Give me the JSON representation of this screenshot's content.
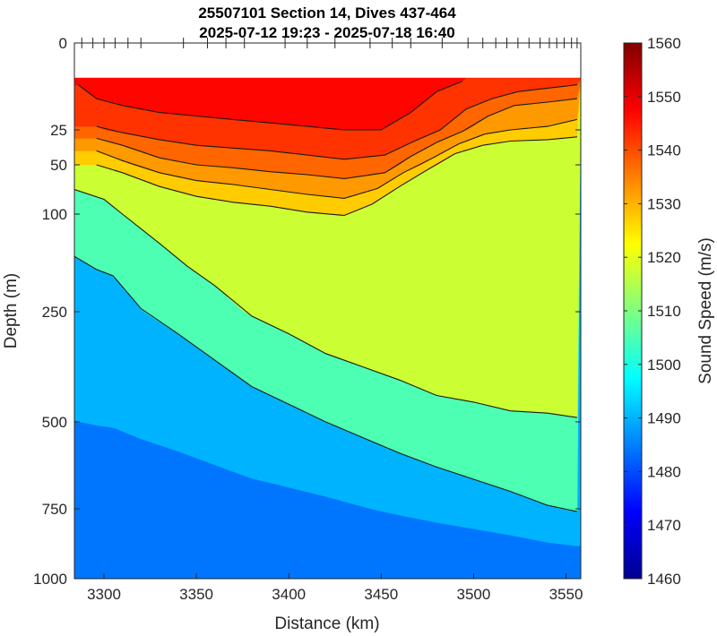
{
  "chart_data": {
    "type": "heatmap",
    "title": "25507101 Section 14, Dives 437-464",
    "subtitle": "2025-07-12 19:23 - 2025-07-18 16:40",
    "xlabel": "Distance (km)",
    "ylabel": "Depth (m)",
    "xlim": [
      3284,
      3558
    ],
    "ylim": [
      0,
      1000
    ],
    "y_scale": "nonlinear (compressed deep axis)",
    "x_ticks": [
      3300,
      3350,
      3400,
      3450,
      3500,
      3550
    ],
    "x_tick_labels": [
      "3300",
      "3350",
      "3400",
      "3450",
      "3500",
      "3550"
    ],
    "y_ticks": [
      0,
      25,
      50,
      100,
      250,
      500,
      750,
      1000
    ],
    "y_tick_labels": [
      "0",
      "25",
      "50",
      "100",
      "250",
      "500",
      "750",
      "1000"
    ],
    "colorbar": {
      "label": "Sound Speed (m/s)",
      "range": [
        1460,
        1560
      ],
      "ticks": [
        1460,
        1470,
        1480,
        1490,
        1500,
        1510,
        1520,
        1530,
        1540,
        1550,
        1560
      ],
      "tick_labels": [
        "1460",
        "1470",
        "1480",
        "1490",
        "1500",
        "1510",
        "1520",
        "1530",
        "1540",
        "1550",
        "1560"
      ],
      "colormap": "jet"
    },
    "data_top_depth": 10,
    "dive_locations_km": [
      3288,
      3294,
      3300,
      3306,
      3313,
      3320,
      3343,
      3356,
      3366,
      3376,
      3398,
      3410,
      3425,
      3444,
      3456,
      3466,
      3483,
      3497,
      3505,
      3512,
      3518,
      3524,
      3530,
      3536,
      3541,
      3545,
      3549,
      3553,
      3556
    ],
    "contour_levels": [
      1500,
      1510,
      1520,
      1525,
      1530,
      1535,
      1540,
      1545
    ],
    "contours": [
      {
        "level": 1500,
        "points": [
          [
            3284,
            165
          ],
          [
            3296,
            185
          ],
          [
            3305,
            195
          ],
          [
            3320,
            245
          ],
          [
            3340,
            300
          ],
          [
            3360,
            360
          ],
          [
            3380,
            420
          ],
          [
            3400,
            460
          ],
          [
            3420,
            500
          ],
          [
            3440,
            545
          ],
          [
            3460,
            590
          ],
          [
            3480,
            630
          ],
          [
            3500,
            665
          ],
          [
            3520,
            700
          ],
          [
            3540,
            740
          ],
          [
            3556,
            760
          ]
        ]
      },
      {
        "level": 1510,
        "points": [
          [
            3284,
            75
          ],
          [
            3300,
            85
          ],
          [
            3310,
            100
          ],
          [
            3330,
            145
          ],
          [
            3345,
            180
          ],
          [
            3360,
            210
          ],
          [
            3380,
            260
          ],
          [
            3400,
            300
          ],
          [
            3420,
            345
          ],
          [
            3440,
            375
          ],
          [
            3460,
            405
          ],
          [
            3480,
            440
          ],
          [
            3500,
            455
          ],
          [
            3520,
            475
          ],
          [
            3540,
            480
          ],
          [
            3556,
            490
          ]
        ]
      },
      {
        "level": 1525,
        "points": [
          [
            3296,
            50
          ],
          [
            3310,
            58
          ],
          [
            3330,
            72
          ],
          [
            3350,
            82
          ],
          [
            3370,
            88
          ],
          [
            3390,
            92
          ],
          [
            3410,
            98
          ],
          [
            3430,
            102
          ],
          [
            3445,
            90
          ],
          [
            3460,
            72
          ],
          [
            3475,
            55
          ],
          [
            3490,
            42
          ],
          [
            3505,
            36
          ],
          [
            3520,
            33
          ],
          [
            3540,
            32
          ],
          [
            3556,
            30
          ]
        ]
      },
      {
        "level": 1530,
        "points": [
          [
            3296,
            40
          ],
          [
            3310,
            47
          ],
          [
            3330,
            58
          ],
          [
            3350,
            66
          ],
          [
            3370,
            70
          ],
          [
            3390,
            75
          ],
          [
            3410,
            80
          ],
          [
            3430,
            84
          ],
          [
            3448,
            74
          ],
          [
            3462,
            58
          ],
          [
            3478,
            45
          ],
          [
            3492,
            35
          ],
          [
            3506,
            28
          ],
          [
            3520,
            25
          ],
          [
            3540,
            24
          ],
          [
            3556,
            22
          ]
        ]
      },
      {
        "level": 1535,
        "points": [
          [
            3296,
            31
          ],
          [
            3310,
            36
          ],
          [
            3330,
            45
          ],
          [
            3350,
            50
          ],
          [
            3370,
            53
          ],
          [
            3390,
            57
          ],
          [
            3410,
            60
          ],
          [
            3430,
            64
          ],
          [
            3452,
            58
          ],
          [
            3466,
            44
          ],
          [
            3480,
            34
          ],
          [
            3494,
            26
          ],
          [
            3508,
            21
          ],
          [
            3522,
            18
          ],
          [
            3540,
            17
          ],
          [
            3556,
            16
          ]
        ]
      },
      {
        "level": 1540,
        "points": [
          [
            3296,
            24
          ],
          [
            3310,
            27
          ],
          [
            3330,
            32
          ],
          [
            3350,
            36
          ],
          [
            3370,
            38
          ],
          [
            3390,
            40
          ],
          [
            3410,
            43
          ],
          [
            3430,
            46
          ],
          [
            3452,
            43
          ],
          [
            3468,
            33
          ],
          [
            3482,
            25
          ],
          [
            3496,
            19
          ],
          [
            3510,
            16
          ],
          [
            3524,
            14
          ],
          [
            3540,
            13
          ],
          [
            3556,
            12
          ]
        ]
      },
      {
        "level": 1545,
        "points": [
          [
            3286,
            12
          ],
          [
            3296,
            16
          ],
          [
            3310,
            18
          ],
          [
            3330,
            20
          ],
          [
            3350,
            21
          ],
          [
            3370,
            22
          ],
          [
            3390,
            23
          ],
          [
            3410,
            24
          ],
          [
            3430,
            25
          ],
          [
            3450,
            25
          ],
          [
            3466,
            20
          ],
          [
            3480,
            14
          ],
          [
            3494,
            11
          ]
        ]
      }
    ]
  }
}
